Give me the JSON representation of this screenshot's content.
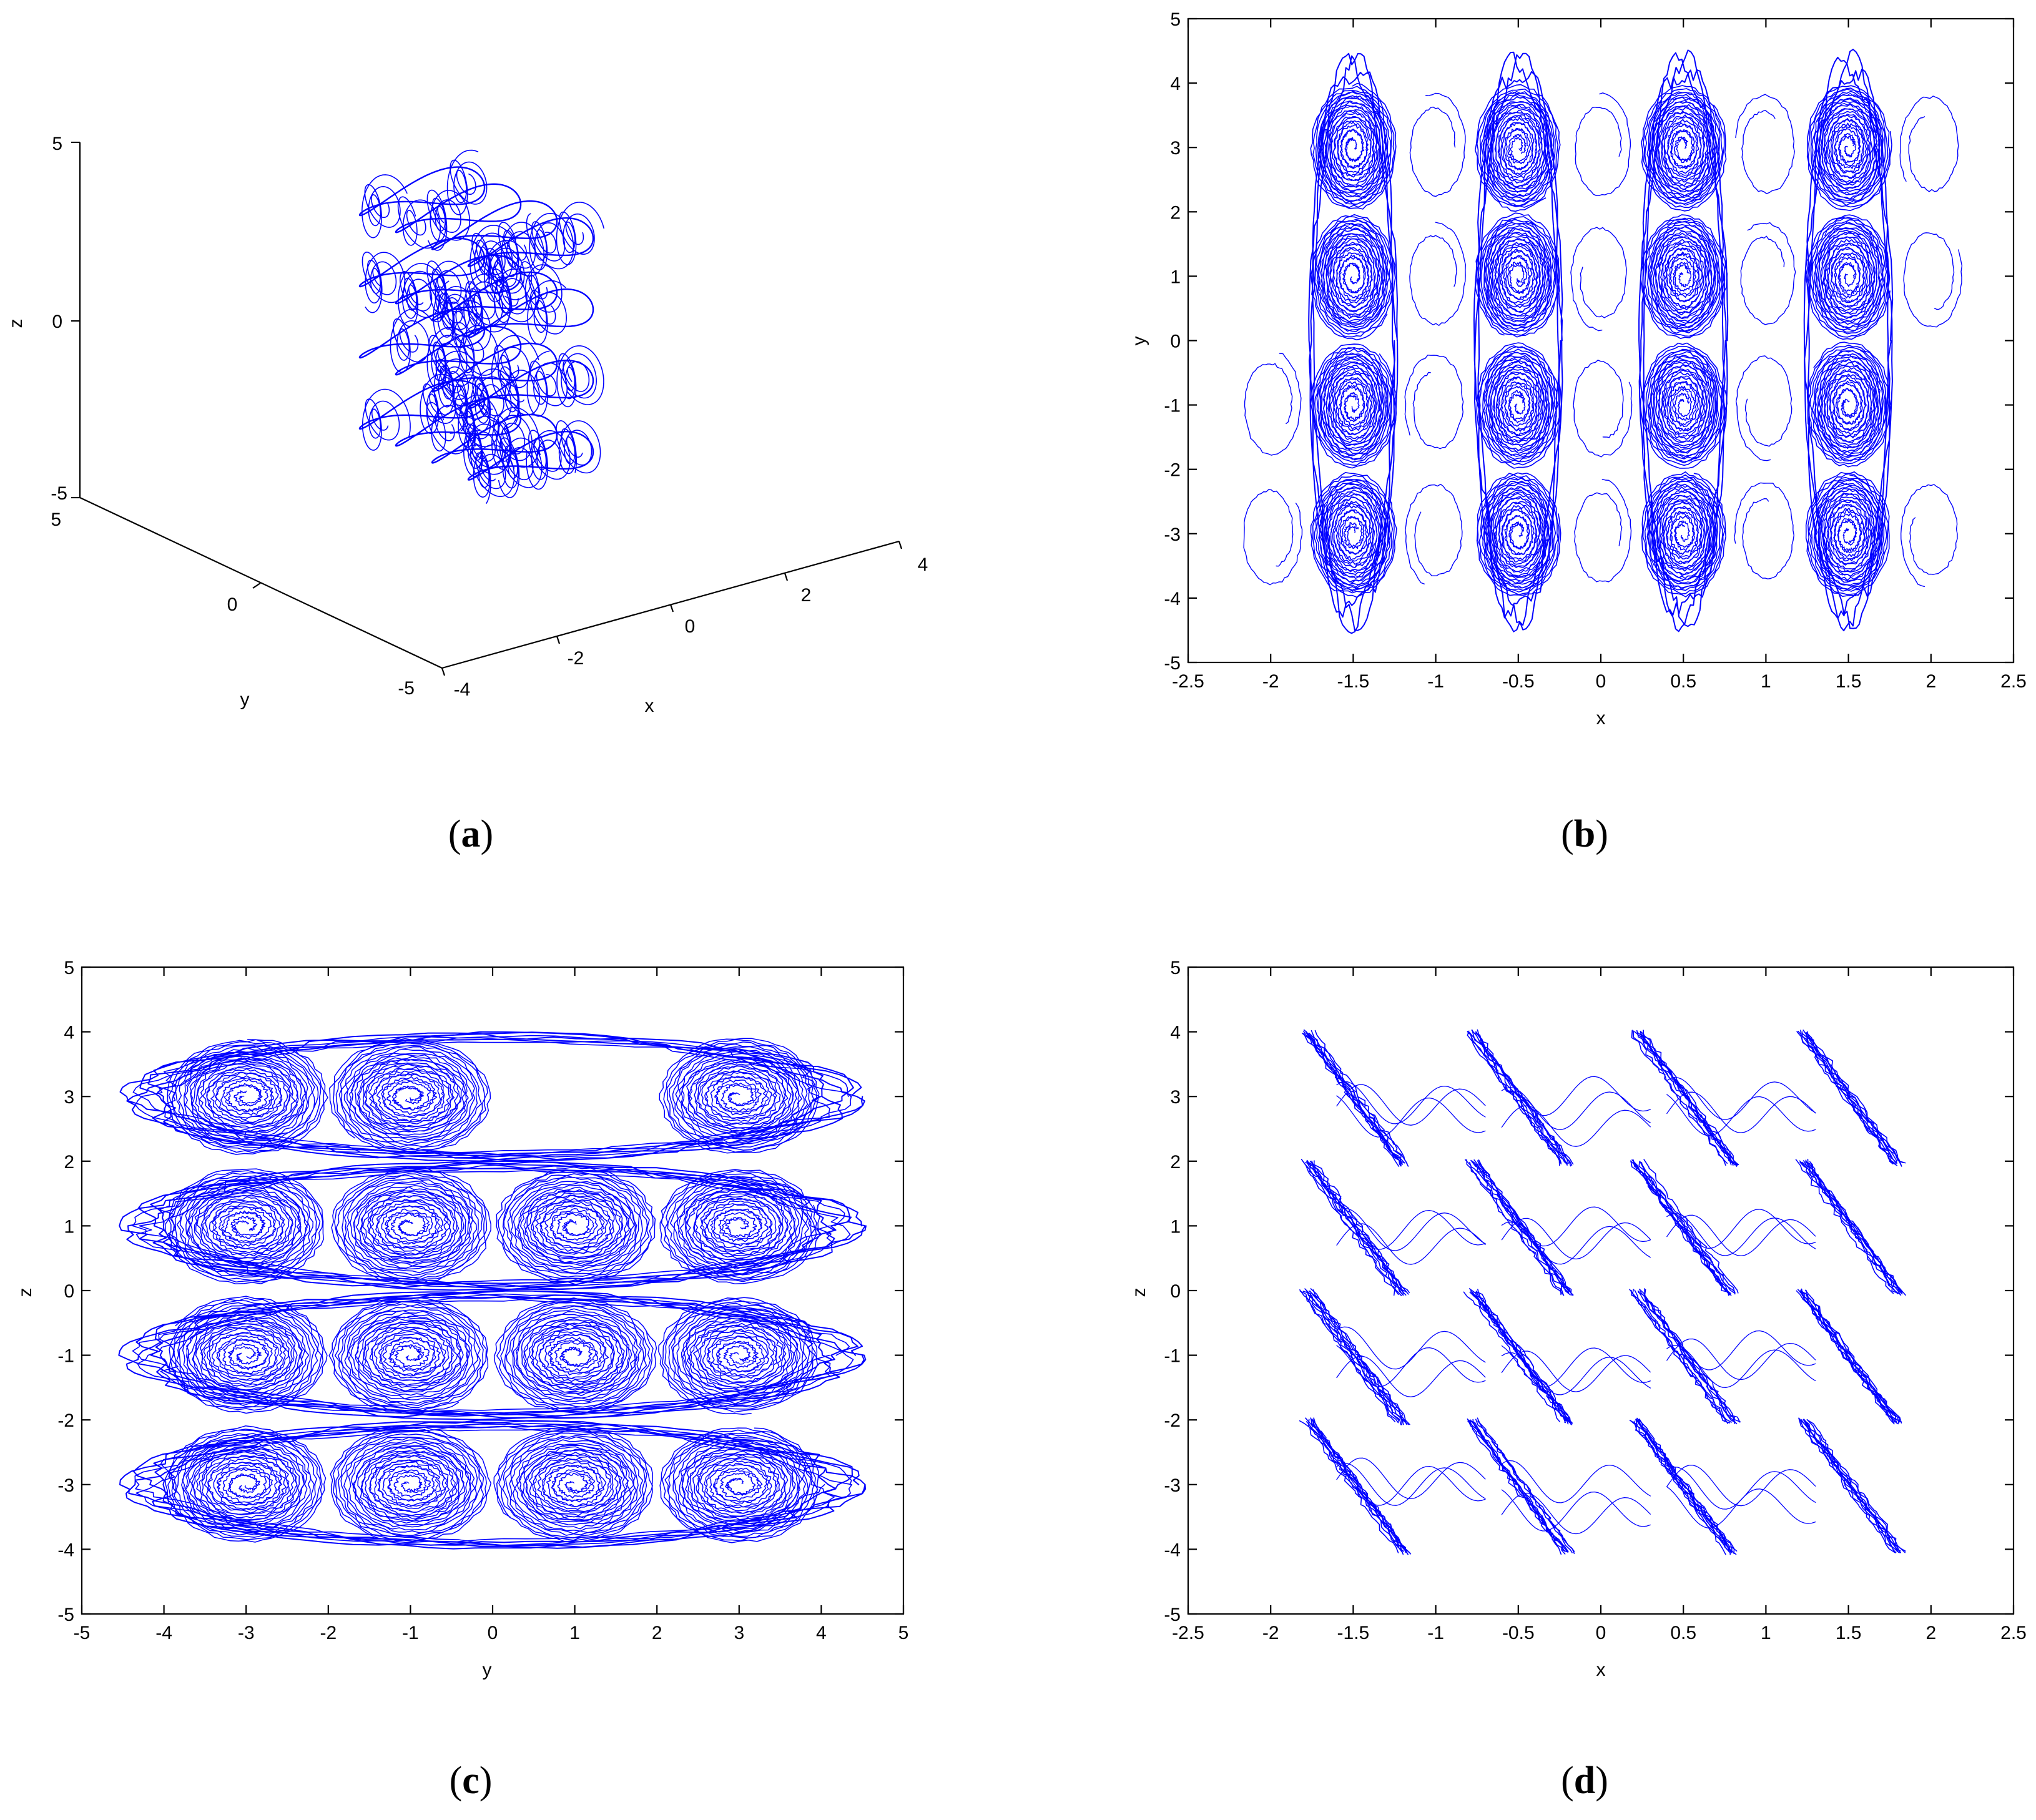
{
  "colors": {
    "trajectory": "#0000ff",
    "axes": "#000000",
    "background": "#ffffff"
  },
  "chart_data": [
    {
      "panel": "a",
      "type": "line",
      "projection": "3d",
      "caption": "(a)",
      "caption_letter": "a",
      "xlabel": "x",
      "ylabel": "y",
      "zlabel": "z",
      "xlim": [
        -4,
        4
      ],
      "ylim": [
        -5,
        5
      ],
      "zlim": [
        -5,
        5
      ],
      "xticks": [
        "-4",
        "-2",
        "0",
        "2",
        "4"
      ],
      "yticks": [
        "5",
        "0",
        "-5"
      ],
      "zticks": [
        "5",
        "0",
        "-5"
      ],
      "grid": false,
      "attractor": {
        "x_centers": [
          -1.5,
          -0.5,
          0.5,
          1.5
        ],
        "y_centers": [
          -3,
          -1,
          1,
          3
        ],
        "z_centers": [
          -3,
          -1,
          1,
          3
        ]
      }
    },
    {
      "panel": "b",
      "type": "line",
      "caption": "(b)",
      "caption_letter": "b",
      "xlabel": "x",
      "ylabel": "y",
      "xlim": [
        -2.5,
        2.5
      ],
      "ylim": [
        -5,
        5
      ],
      "xticks": [
        "-2.5",
        "-2",
        "-1.5",
        "-1",
        "-0.5",
        "0",
        "0.5",
        "1",
        "1.5",
        "2",
        "2.5"
      ],
      "yticks": [
        "-5",
        "-4",
        "-3",
        "-2",
        "-1",
        "0",
        "1",
        "2",
        "3",
        "4",
        "5"
      ],
      "grid": false,
      "attractor": {
        "x_centers": [
          -1.5,
          -0.5,
          0.5,
          1.5
        ],
        "y_centers": [
          -3,
          -1,
          1,
          3
        ],
        "x_extent": [
          -2.2,
          2.2
        ],
        "y_extent": [
          -4.6,
          4.6
        ]
      }
    },
    {
      "panel": "c",
      "type": "line",
      "caption": "(c)",
      "caption_letter": "c",
      "xlabel": "y",
      "ylabel": "z",
      "xlim": [
        -5,
        5
      ],
      "ylim": [
        -5,
        5
      ],
      "xticks": [
        "-5",
        "-4",
        "-3",
        "-2",
        "-1",
        "0",
        "1",
        "2",
        "3",
        "4",
        "5"
      ],
      "yticks": [
        "-5",
        "-4",
        "-3",
        "-2",
        "-1",
        "0",
        "1",
        "2",
        "3",
        "4",
        "5"
      ],
      "grid": false,
      "attractor": {
        "y_centers": [
          -3,
          -1,
          1,
          3
        ],
        "z_centers": [
          -3,
          -1,
          1,
          3
        ],
        "y_extent": [
          -4.6,
          4.6
        ],
        "z_extent": [
          -4.1,
          4.1
        ]
      }
    },
    {
      "panel": "d",
      "type": "line",
      "caption": "(d)",
      "caption_letter": "d",
      "xlabel": "x",
      "ylabel": "z",
      "xlim": [
        -2.5,
        2.5
      ],
      "ylim": [
        -5,
        5
      ],
      "xticks": [
        "-2.5",
        "-2",
        "-1.5",
        "-1",
        "-0.5",
        "0",
        "0.5",
        "1",
        "1.5",
        "2",
        "2.5"
      ],
      "yticks": [
        "-5",
        "-4",
        "-3",
        "-2",
        "-1",
        "0",
        "1",
        "2",
        "3",
        "4",
        "5"
      ],
      "grid": false,
      "attractor": {
        "x_centers": [
          -1.5,
          -0.5,
          0.5,
          1.5
        ],
        "z_centers": [
          -3,
          -1,
          1,
          3
        ],
        "x_extent": [
          -2.2,
          2.2
        ],
        "z_extent": [
          -4.1,
          4.1
        ]
      }
    }
  ]
}
